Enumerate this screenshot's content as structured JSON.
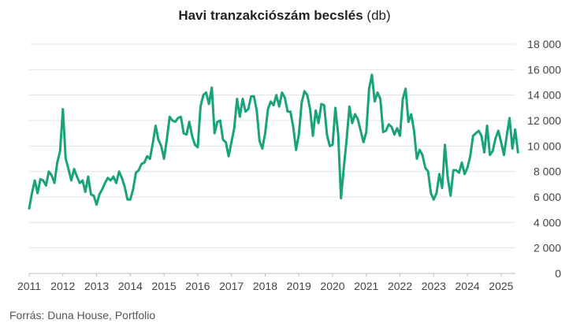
{
  "chart_data": {
    "type": "line",
    "title": "Havi tranzakciószám becslés",
    "title_unit": "(db)",
    "source": "Forrás: Duna House, Portfolio",
    "x_tick_labels": [
      "2011",
      "2012",
      "2013",
      "2014",
      "2015",
      "2016",
      "2017",
      "2018",
      "2019",
      "2020",
      "2021",
      "2022",
      "2023",
      "2024",
      "2025"
    ],
    "y_tick_labels": [
      "0",
      "2 000",
      "4 000",
      "6 000",
      "8 000",
      "10 000",
      "12 000",
      "14 000",
      "16 000",
      "18 000"
    ],
    "y_ticks": [
      0,
      2000,
      4000,
      6000,
      8000,
      10000,
      12000,
      14000,
      16000,
      18000
    ],
    "ylim": [
      0,
      18000
    ],
    "xlim": [
      2011.0,
      2025.33
    ],
    "grid": "horizontal",
    "line_color": "#1aa37a",
    "start": "2011-01",
    "series": [
      {
        "values": [
          5100,
          6300,
          7300,
          6300,
          7400,
          7300,
          6900,
          8000,
          7700,
          7100,
          8700,
          9600,
          12900,
          9000,
          8200,
          7300,
          8200,
          7600,
          7100,
          7300,
          6400,
          7600,
          6200,
          6100,
          5400,
          6200,
          6600,
          7100,
          7500,
          7300,
          7600,
          7100,
          8000,
          7500,
          6800,
          5800,
          5800,
          6600,
          7900,
          8100,
          8600,
          8700,
          9200,
          9000,
          10200,
          11600,
          10500,
          10000,
          9000,
          10500,
          12300,
          12000,
          11900,
          12200,
          12300,
          11000,
          10900,
          11900,
          10800,
          10100,
          9900,
          13100,
          14000,
          14200,
          13300,
          14600,
          11000,
          11900,
          12000,
          10500,
          10300,
          9200,
          10300,
          11400,
          13700,
          12300,
          13700,
          12700,
          12900,
          13900,
          13900,
          12800,
          10400,
          9800,
          11000,
          12900,
          13500,
          13200,
          14000,
          13100,
          14200,
          13800,
          12700,
          12700,
          11500,
          9700,
          10900,
          13400,
          14300,
          14000,
          12900,
          10800,
          12800,
          11800,
          13300,
          13200,
          10900,
          10000,
          10100,
          13000,
          10900,
          5900,
          8300,
          10500,
          13100,
          11800,
          12500,
          12100,
          11200,
          10300,
          11100,
          14500,
          15600,
          13500,
          14200,
          13700,
          11100,
          11200,
          11700,
          11500,
          10900,
          11400,
          10800,
          13700,
          14500,
          11900,
          12500,
          11200,
          9000,
          9700,
          9300,
          8300,
          8000,
          6300,
          5800,
          6300,
          7800,
          6700,
          10100,
          7500,
          6100,
          8100,
          8100,
          7900,
          8700,
          7800,
          8300,
          9200,
          10800,
          11000,
          11200,
          10800,
          9500,
          11600,
          9300,
          9600,
          10600,
          11200,
          10300,
          9300,
          10800,
          12200,
          9800,
          11300,
          9500
        ]
      }
    ]
  }
}
